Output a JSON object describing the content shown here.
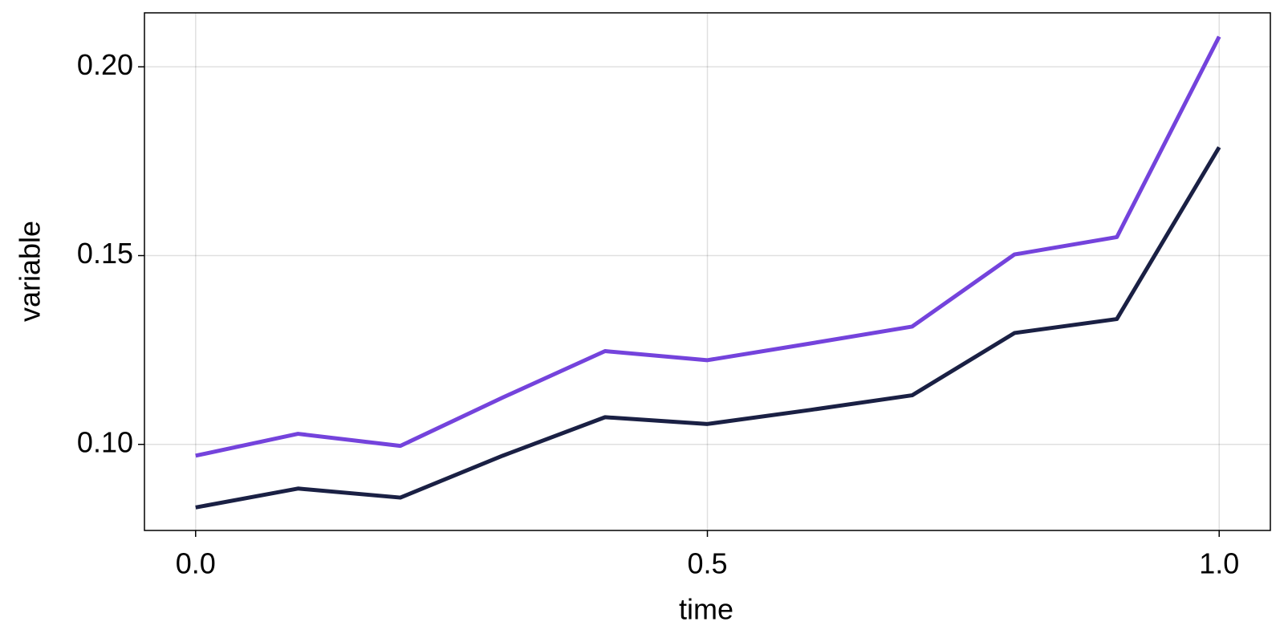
{
  "chart_data": {
    "type": "line",
    "x_label": "time",
    "y_label": "variable",
    "x": [
      0,
      0.1,
      0.2,
      0.3,
      0.4,
      0.5,
      0.6,
      0.7,
      0.8,
      0.9,
      1.0
    ],
    "series": [
      {
        "color": "#7443dc",
        "values": [
          0.097,
          0.1028,
          0.0996,
          0.1124,
          0.1247,
          0.1223,
          0.1267,
          0.1312,
          0.1503,
          0.1549,
          0.208
        ]
      },
      {
        "color": "#1a2044",
        "values": [
          0.0833,
          0.0883,
          0.0859,
          0.097,
          0.1072,
          0.1054,
          0.1091,
          0.113,
          0.1295,
          0.1332,
          0.1787
        ]
      }
    ],
    "xlim": [
      -0.05,
      1.05
    ],
    "ylim": [
      0.0772,
      0.2143
    ],
    "xticks": [
      {
        "value": 0,
        "label": "0.0"
      },
      {
        "value": 0.5,
        "label": "0.5"
      },
      {
        "value": 1.0,
        "label": "1.0"
      }
    ],
    "yticks": [
      {
        "value": 0.1,
        "label": "0.10"
      },
      {
        "value": 0.15,
        "label": "0.15"
      },
      {
        "value": 0.2,
        "label": "0.20"
      }
    ],
    "grid": true
  }
}
